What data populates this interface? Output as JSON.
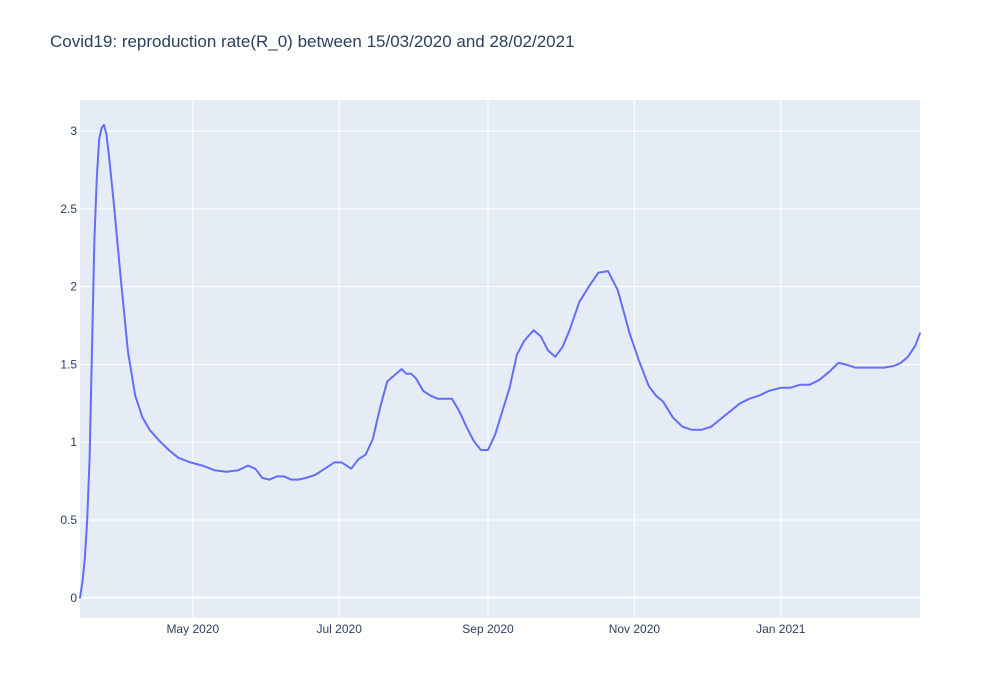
{
  "chart_data": {
    "type": "line",
    "title": "Covid19: reproduction rate(R_0) between 15/03/2020 and 28/02/2021",
    "xlabel": "",
    "ylabel": "",
    "xlim": [
      "2020-03-15",
      "2021-02-28"
    ],
    "ylim": [
      -0.13,
      3.2
    ],
    "x_ticks": [
      {
        "date": "2020-05-01",
        "label": "May 2020"
      },
      {
        "date": "2020-07-01",
        "label": "Jul 2020"
      },
      {
        "date": "2020-09-01",
        "label": "Sep 2020"
      },
      {
        "date": "2020-11-01",
        "label": "Nov 2020"
      },
      {
        "date": "2021-01-01",
        "label": "Jan 2021"
      }
    ],
    "y_ticks": [
      {
        "value": 0,
        "label": "0"
      },
      {
        "value": 0.5,
        "label": "0.5"
      },
      {
        "value": 1,
        "label": "1"
      },
      {
        "value": 1.5,
        "label": "1.5"
      },
      {
        "value": 2,
        "label": "2"
      },
      {
        "value": 2.5,
        "label": "2.5"
      },
      {
        "value": 3,
        "label": "3"
      }
    ],
    "grid": true,
    "legend": "none",
    "colors": {
      "line": "#636efa",
      "plot_bg": "#e5ecf6",
      "grid": "#ffffff",
      "text": "#2a3f5f"
    },
    "series": [
      {
        "x": [
          "2020-03-15",
          "2020-03-16",
          "2020-03-17",
          "2020-03-18",
          "2020-03-19",
          "2020-03-20",
          "2020-03-21",
          "2020-03-22",
          "2020-03-23",
          "2020-03-24",
          "2020-03-25",
          "2020-03-26",
          "2020-03-27",
          "2020-03-29",
          "2020-04-01",
          "2020-04-04",
          "2020-04-07",
          "2020-04-10",
          "2020-04-13",
          "2020-04-17",
          "2020-04-21",
          "2020-04-25",
          "2020-04-30",
          "2020-05-05",
          "2020-05-10",
          "2020-05-15",
          "2020-05-20",
          "2020-05-24",
          "2020-05-27",
          "2020-05-30",
          "2020-06-02",
          "2020-06-05",
          "2020-06-08",
          "2020-06-11",
          "2020-06-14",
          "2020-06-17",
          "2020-06-21",
          "2020-06-25",
          "2020-06-29",
          "2020-07-02",
          "2020-07-06",
          "2020-07-09",
          "2020-07-12",
          "2020-07-15",
          "2020-07-18",
          "2020-07-21",
          "2020-07-24",
          "2020-07-27",
          "2020-07-29",
          "2020-07-31",
          "2020-08-02",
          "2020-08-05",
          "2020-08-08",
          "2020-08-11",
          "2020-08-14",
          "2020-08-17",
          "2020-08-20",
          "2020-08-23",
          "2020-08-26",
          "2020-08-29",
          "2020-09-01",
          "2020-09-04",
          "2020-09-07",
          "2020-09-10",
          "2020-09-13",
          "2020-09-16",
          "2020-09-20",
          "2020-09-23",
          "2020-09-26",
          "2020-09-29",
          "2020-10-02",
          "2020-10-05",
          "2020-10-09",
          "2020-10-13",
          "2020-10-17",
          "2020-10-21",
          "2020-10-25",
          "2020-10-27",
          "2020-10-30",
          "2020-11-03",
          "2020-11-07",
          "2020-11-10",
          "2020-11-13",
          "2020-11-17",
          "2020-11-21",
          "2020-11-25",
          "2020-11-29",
          "2020-12-03",
          "2020-12-07",
          "2020-12-11",
          "2020-12-15",
          "2020-12-19",
          "2020-12-23",
          "2020-12-27",
          "2021-01-01",
          "2021-01-05",
          "2021-01-09",
          "2021-01-13",
          "2021-01-17",
          "2021-01-21",
          "2021-01-25",
          "2021-01-28",
          "2021-02-01",
          "2021-02-05",
          "2021-02-09",
          "2021-02-13",
          "2021-02-17",
          "2021-02-20",
          "2021-02-23",
          "2021-02-26",
          "2021-02-28"
        ],
        "y": [
          0,
          0.1,
          0.25,
          0.5,
          0.9,
          1.6,
          2.3,
          2.7,
          2.95,
          3.02,
          3.04,
          2.98,
          2.85,
          2.55,
          2.05,
          1.58,
          1.3,
          1.16,
          1.08,
          1.01,
          0.95,
          0.9,
          0.87,
          0.85,
          0.82,
          0.81,
          0.82,
          0.85,
          0.83,
          0.77,
          0.76,
          0.78,
          0.78,
          0.76,
          0.76,
          0.77,
          0.79,
          0.83,
          0.87,
          0.87,
          0.83,
          0.89,
          0.92,
          1.02,
          1.22,
          1.39,
          1.43,
          1.47,
          1.44,
          1.44,
          1.41,
          1.33,
          1.3,
          1.28,
          1.28,
          1.28,
          1.2,
          1.1,
          1.01,
          0.95,
          0.95,
          1.05,
          1.2,
          1.35,
          1.56,
          1.65,
          1.72,
          1.68,
          1.59,
          1.55,
          1.61,
          1.72,
          1.9,
          2.0,
          2.09,
          2.1,
          1.98,
          1.87,
          1.7,
          1.52,
          1.36,
          1.3,
          1.26,
          1.16,
          1.1,
          1.08,
          1.08,
          1.1,
          1.15,
          1.2,
          1.25,
          1.28,
          1.3,
          1.33,
          1.35,
          1.35,
          1.37,
          1.37,
          1.4,
          1.45,
          1.51,
          1.5,
          1.48,
          1.48,
          1.48,
          1.48,
          1.49,
          1.51,
          1.55,
          1.62,
          1.7
        ]
      }
    ]
  }
}
